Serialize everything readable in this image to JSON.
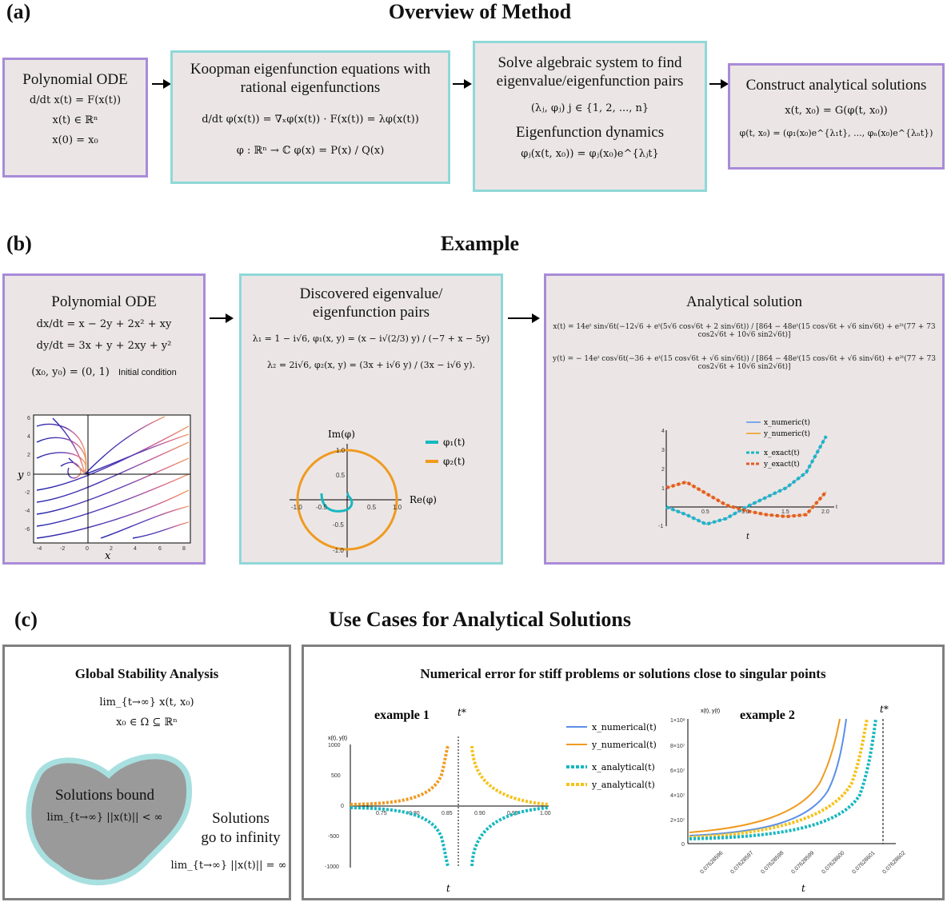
{
  "panel_a": {
    "letter": "(a)",
    "title": "Overview of Method",
    "box1": {
      "title": "Polynomial ODE",
      "eq1": "d/dt x(t) = F(x(t))",
      "eq2": "x(t) ∈ ℝⁿ",
      "eq3": "x(0) = x₀"
    },
    "box2": {
      "title": "Koopman eigenfunction equations with rational eigenfunctions",
      "eq1": "d/dt φ(x(t)) = ∇ₓφ(x(t)) · F(x(t)) = λφ(x(t))",
      "eq2": "φ : ℝⁿ → ℂ     φ(x) = P(x) / Q(x)"
    },
    "box3": {
      "title": "Solve algebraic system to find eigenvalue/eigenfunction pairs",
      "eq1": "(λⱼ, φⱼ)      j ∈ {1, 2, ..., n}",
      "subtitle": "Eigenfunction dynamics",
      "eq2": "φⱼ(x(t, x₀)) = φⱼ(x₀)e^{λⱼt}"
    },
    "box4": {
      "title": "Construct analytical solutions",
      "eq1": "x(t, x₀) = G(φ(t, x₀))",
      "eq2": "φ(t, x₀) = (φ₁(x₀)e^{λ₁t}, ..., φₙ(x₀)e^{λₙt})"
    }
  },
  "panel_b": {
    "letter": "(b)",
    "title": "Example",
    "box1": {
      "title": "Polynomial ODE",
      "eq1": "dx/dt = x − 2y + 2x² + xy",
      "eq2": "dy/dt = 3x + y + 2xy + y²",
      "eq3": "(x₀, y₀) = (0, 1)",
      "ic_label": "Initial condition",
      "xlabel": "x",
      "ylabel": "y",
      "xticks": [
        "-4",
        "-2",
        "0",
        "2",
        "4",
        "6",
        "8"
      ],
      "yticks": [
        "6",
        "4",
        "2",
        "0",
        "-2",
        "-4",
        "-6"
      ]
    },
    "box2": {
      "title": "Discovered eigenvalue/ eigenfunction pairs",
      "eq1": "λ₁ = 1 − i√6,   φ₁(x, y) = (x − i√(2/3) y) / (−7 + x − 5y)",
      "eq2": "λ₂ = 2i√6,   φ₂(x, y) = (3x + i√6 y) / (3x − i√6 y).",
      "ylabel": "Im(φ)",
      "xlabel": "Re(φ)",
      "legend1": "φ₁(t)",
      "legend2": "φ₂(t)",
      "xticks": [
        "-1.0",
        "-0.5",
        "0.5",
        "1.0"
      ],
      "yticks": [
        "1.0",
        "0.5",
        "-0.5",
        "-1.0"
      ]
    },
    "box3": {
      "title": "Analytical solution",
      "eq1": "x(t) = 14eᵗ sin√6t(−12√6 + eᵗ(5√6 cos√6t + 2 sin√6t)) / [864 − 48eᵗ(15 cos√6t + √6 sin√6t) + e²ᵗ(77 + 73 cos2√6t + 10√6 sin2√6t)]",
      "eq2": "y(t) = − 14eᵗ cos√6t(−36 + eᵗ(15 cos√6t + √6 sin√6t)) / [864 − 48eᵗ(15 cos√6t + √6 sin√6t) + e²ᵗ(77 + 73 cos2√6t + 10√6 sin2√6t)]",
      "legend": [
        "x_numeric(t)",
        "y_numeric(t)",
        "x_exact(t)",
        "y_exact(t)"
      ],
      "xlabel": "t",
      "xticks": [
        "0.5",
        "1.0",
        "1.5",
        "2.0"
      ],
      "yticks": [
        "4",
        "3",
        "2",
        "1",
        "-1"
      ],
      "t_label": "t"
    }
  },
  "panel_c": {
    "letter": "(c)",
    "title": "Use Cases for Analytical Solutions",
    "left": {
      "title": "Global Stability Analysis",
      "eq1": "lim_{t→∞} x(t, x₀)",
      "eq2": "x₀ ∈ Ω ⊆ ℝⁿ",
      "bound1": "Solutions bound",
      "bound2": "lim_{t→∞} ||x(t)|| < ∞",
      "inf1": "Solutions",
      "inf2": "go to infinity",
      "inf3": "lim_{t→∞} ||x(t)|| = ∞"
    },
    "right": {
      "title": "Numerical error for stiff problems or solutions close to singular points",
      "ex1": "example 1",
      "ex2": "example 2",
      "tstar": "t*",
      "xlabel": "t",
      "ylabel": "x(t), y(t)",
      "legend": [
        "x_numerical(t)",
        "y_numerical(t)",
        "x_analytical(t)",
        "y_analytical(t)"
      ],
      "ex1_yticks": [
        "1000",
        "500",
        "0",
        "-500",
        "-1000"
      ],
      "ex1_xticks": [
        "0.75",
        "0.80",
        "0.85",
        "0.90",
        "0.95",
        "1.00"
      ],
      "ex2_yticks": [
        "1×10⁸",
        "8×10⁷",
        "6×10⁷",
        "4×10⁷",
        "2×10⁷",
        "0"
      ],
      "ex2_xticks": [
        "0.07628596",
        "0.07628597",
        "0.07628598",
        "0.07628599",
        "0.07628600",
        "0.07628601",
        "0.07628602"
      ]
    }
  },
  "colors": {
    "purple": "#a98bd8",
    "teal": "#8fd8d8",
    "cyan": "#17b8c0",
    "orange": "#f09a20",
    "blue": "#5b8fe8",
    "yellow": "#f5c21b",
    "red": "#e35a2a",
    "navy": "#1c1ca8",
    "pink": "#e07070"
  },
  "chart_data": [
    {
      "type": "line",
      "title": "",
      "xlabel": "Re(φ)",
      "ylabel": "Im(φ)",
      "xlim": [
        -1.1,
        1.1
      ],
      "ylim": [
        -1.1,
        1.1
      ],
      "series": [
        {
          "name": "φ₁(t)",
          "shape": "spiral"
        },
        {
          "name": "φ₂(t)",
          "shape": "unit circle"
        }
      ]
    },
    {
      "type": "line",
      "xlabel": "t",
      "xlim": [
        0,
        2
      ],
      "ylim": [
        -1,
        4
      ],
      "x": [
        0,
        0.25,
        0.5,
        0.75,
        1.0,
        1.25,
        1.5,
        1.75,
        2.0
      ],
      "series": [
        {
          "name": "x_exact(t)",
          "values": [
            0,
            -0.4,
            -0.9,
            -0.6,
            0.0,
            0.5,
            1.0,
            1.8,
            3.7
          ]
        },
        {
          "name": "y_exact(t)",
          "values": [
            1,
            1.3,
            0.7,
            0.1,
            -0.2,
            -0.4,
            -0.5,
            -0.4,
            0.8
          ]
        }
      ]
    },
    {
      "type": "line",
      "title": "example 1",
      "xlim": [
        0.7,
        1.0
      ],
      "ylim": [
        -1000,
        1000
      ],
      "x": [
        0.7,
        0.75,
        0.8,
        0.83,
        0.845,
        0.88,
        0.9,
        0.95,
        1.0
      ],
      "series": [
        {
          "name": "y",
          "values": [
            5,
            10,
            60,
            300,
            950,
            950,
            200,
            20,
            5
          ]
        },
        {
          "name": "x",
          "values": [
            -5,
            -10,
            -60,
            -300,
            -950,
            -950,
            -200,
            -20,
            -5
          ]
        }
      ]
    },
    {
      "type": "line",
      "title": "example 2",
      "ylim": [
        0,
        100000000
      ],
      "x": [
        0.07628596,
        0.07628597,
        0.07628598,
        0.07628599,
        0.076286,
        0.07628601
      ],
      "series": [
        {
          "name": "y_numerical",
          "values": [
            9000000,
            13000000,
            19000000,
            33000000,
            100000000,
            null
          ]
        },
        {
          "name": "x_analytical",
          "values": [
            4000000,
            5000000,
            8000000,
            13000000,
            25000000,
            97000000
          ]
        }
      ]
    }
  ]
}
